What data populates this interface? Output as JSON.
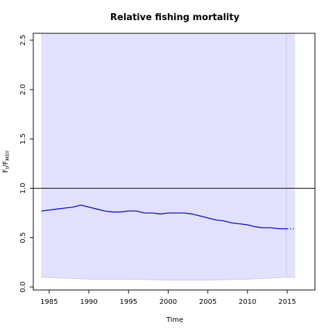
{
  "chart_data": {
    "type": "line",
    "title": "Relative fishing mortality",
    "xlabel": "Time",
    "ylabel_main": "F",
    "ylabel_sub1": "t",
    "ylabel_sep": "/F",
    "ylabel_sub2": "MSY",
    "xlim": [
      1983,
      2018.5
    ],
    "ylim": [
      -0.03,
      2.57
    ],
    "x_ticks": [
      1985,
      1990,
      1995,
      2000,
      2005,
      2010,
      2015
    ],
    "x_tick_labels": [
      "1985",
      "1990",
      "1995",
      "2000",
      "2005",
      "2010",
      "2015"
    ],
    "y_ticks": [
      0.0,
      0.5,
      1.0,
      1.5,
      2.0,
      2.5
    ],
    "y_tick_labels": [
      "0.0",
      "0.5",
      "1.0",
      "1.5",
      "2.0",
      "2.5"
    ],
    "reference_line": 1.0,
    "vertical_marker": 2014.9,
    "series": [
      {
        "values_x": [
          1984,
          1985,
          1986,
          1987,
          1988,
          1989,
          1990,
          1991,
          1992,
          1993,
          1994,
          1995,
          1996,
          1997,
          1998,
          1999,
          2000,
          2001,
          2002,
          2003,
          2004,
          2005,
          2006,
          2007,
          2008,
          2009,
          2010,
          2011,
          2012,
          2013,
          2014,
          2015
        ],
        "values_y": [
          0.77,
          0.78,
          0.79,
          0.8,
          0.81,
          0.83,
          0.81,
          0.79,
          0.77,
          0.76,
          0.76,
          0.77,
          0.77,
          0.75,
          0.75,
          0.74,
          0.75,
          0.75,
          0.75,
          0.74,
          0.72,
          0.7,
          0.68,
          0.67,
          0.65,
          0.64,
          0.63,
          0.61,
          0.6,
          0.6,
          0.59,
          0.59
        ]
      }
    ],
    "projection": {
      "x": [
        2015,
        2016
      ],
      "y": [
        0.59,
        0.59
      ]
    },
    "confidence_band": {
      "x": [
        1984,
        1990,
        1995,
        2000,
        2005,
        2010,
        2015,
        2016
      ],
      "upper": [
        2.57,
        2.57,
        2.57,
        2.57,
        2.57,
        2.57,
        2.57,
        2.57
      ],
      "lower": [
        0.1,
        0.08,
        0.08,
        0.07,
        0.07,
        0.08,
        0.1,
        0.1
      ]
    },
    "colors": {
      "line": "#0000dd",
      "band": "#e2e2ff",
      "band_edge": "#c8c8ee",
      "marker": "#c7c7d9",
      "ref": "#000000"
    },
    "grid": false,
    "legend": "none"
  }
}
